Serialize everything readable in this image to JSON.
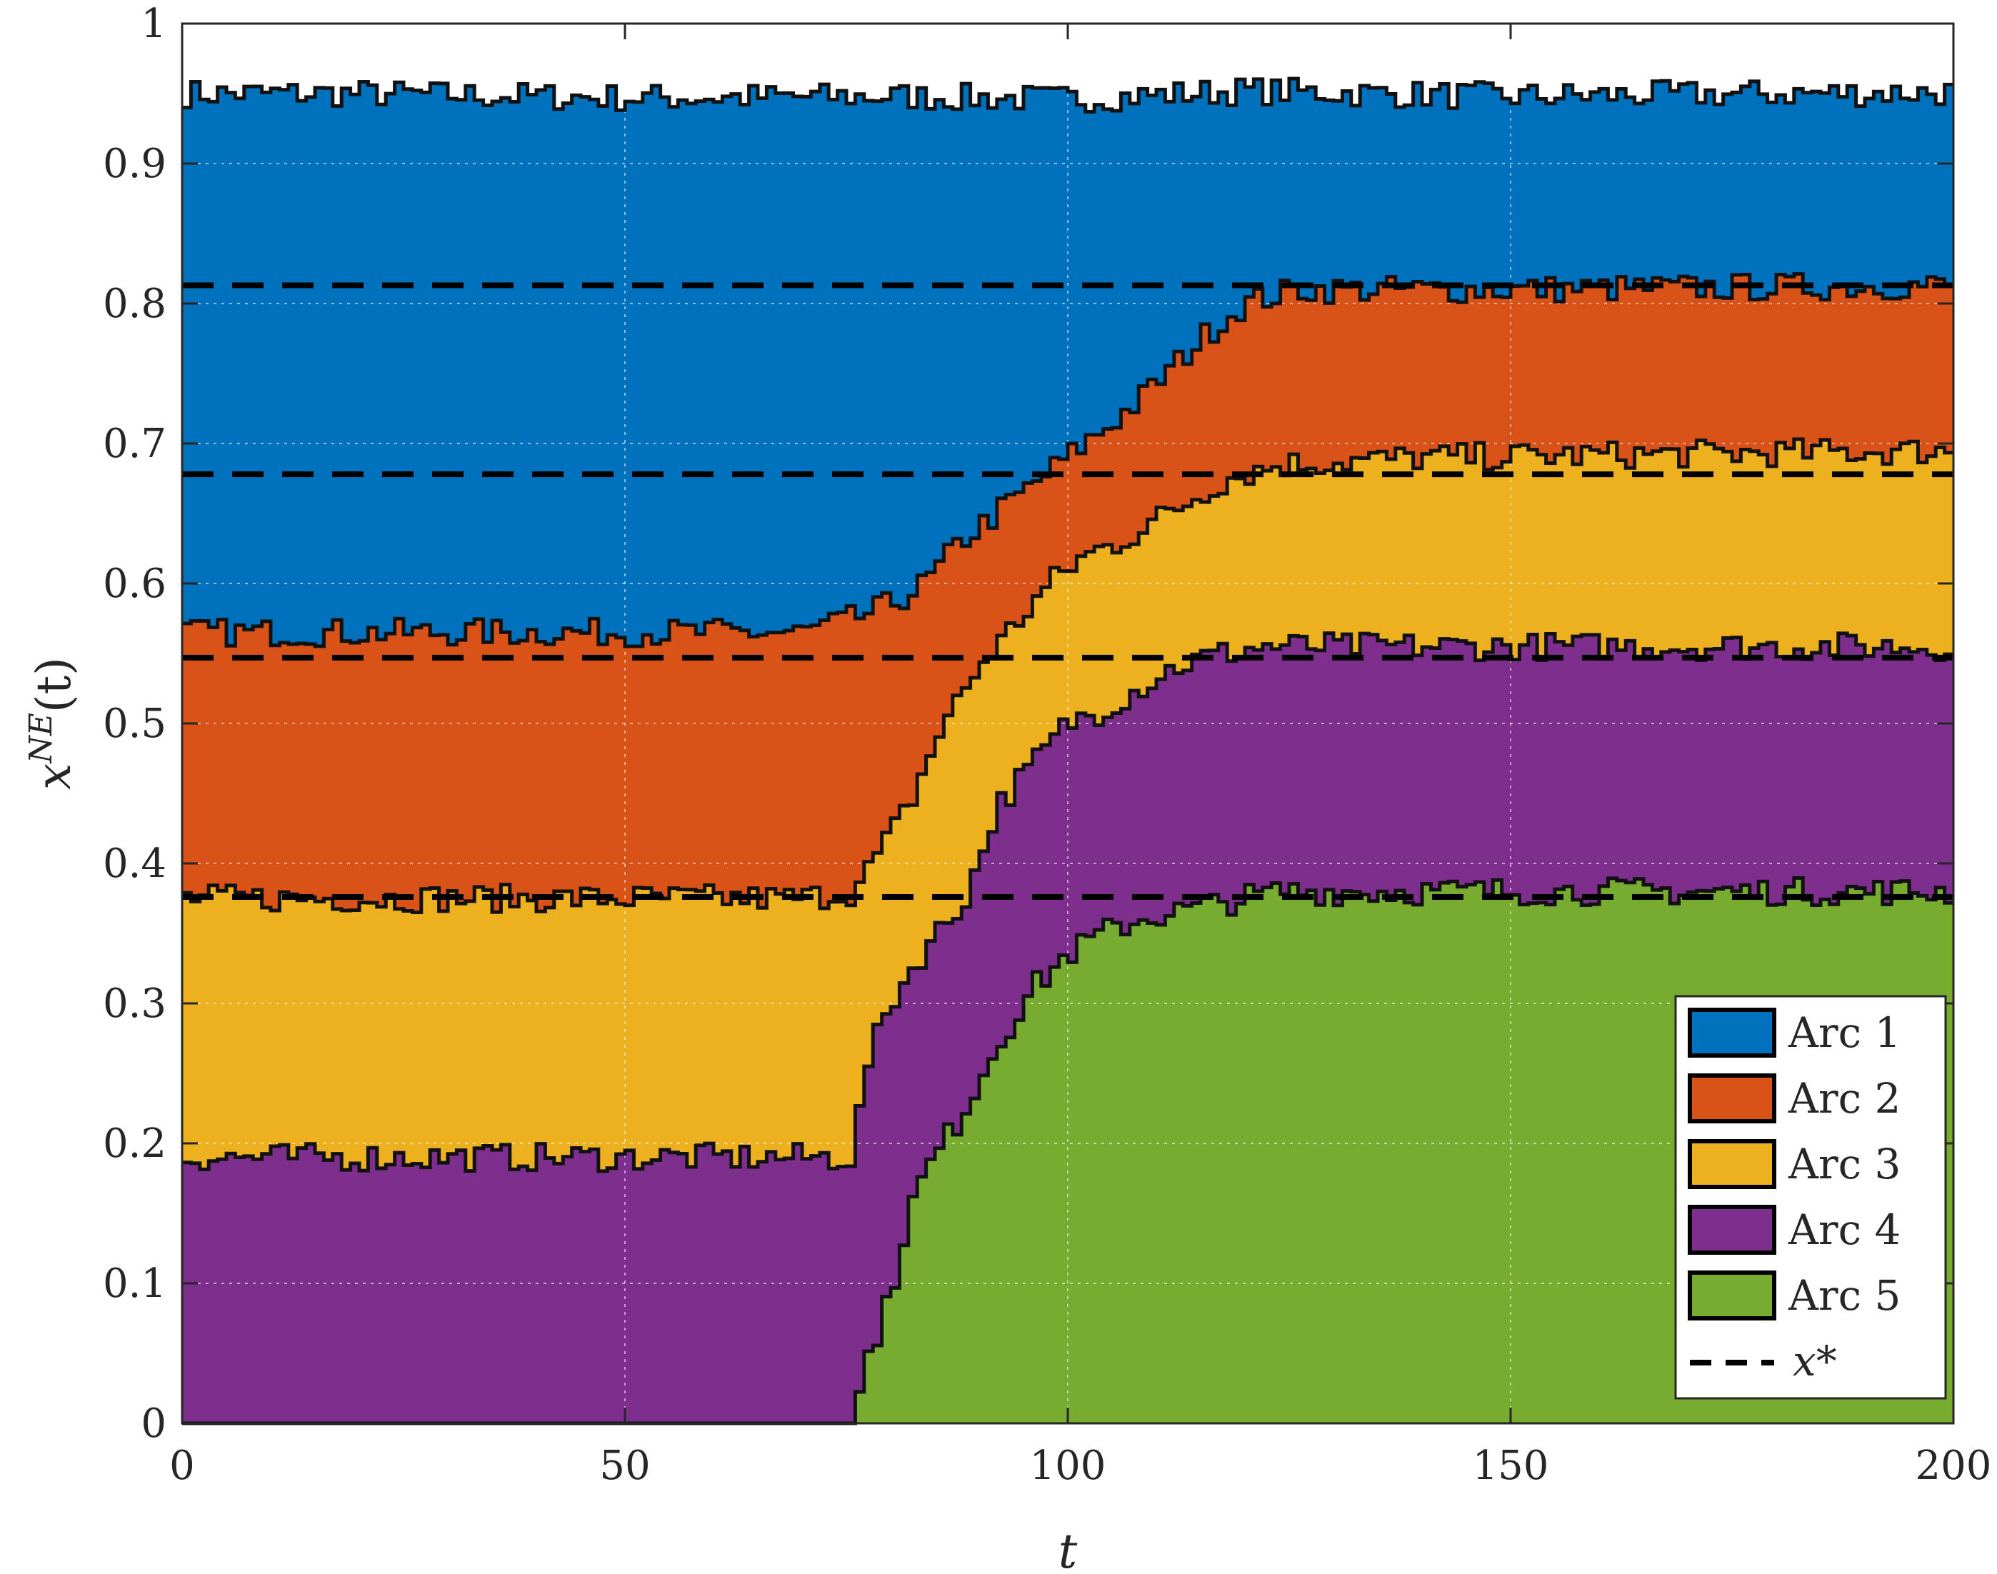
{
  "chart_data": {
    "type": "area",
    "title": "",
    "xlabel": "t",
    "ylabel": "x^{NE}(t)",
    "xlim": [
      0,
      200
    ],
    "ylim": [
      0,
      1
    ],
    "xticks": [
      0,
      50,
      100,
      150,
      200
    ],
    "yticks": [
      0,
      0.1,
      0.2,
      0.3,
      0.4,
      0.5,
      0.6,
      0.7,
      0.8,
      0.9,
      1
    ],
    "ytick_labels": [
      "0",
      "0.1",
      "0.2",
      "0.3",
      "0.4",
      "0.5",
      "0.6",
      "0.7",
      "0.8",
      "0.9",
      "1"
    ],
    "grid": true,
    "stacked": true,
    "step": true,
    "legend_position": "bottom-right",
    "x_star": [
      0.376,
      0.547,
      0.678,
      0.813
    ],
    "x_star_label": "x*",
    "series": [
      {
        "name": "Arc 1",
        "color": "#0072BD",
        "cumulative_top": [
          [
            0,
            0.95
          ],
          [
            20,
            0.95
          ],
          [
            50,
            0.947
          ],
          [
            80,
            0.948
          ],
          [
            100,
            0.946
          ],
          [
            120,
            0.952
          ],
          [
            150,
            0.948
          ],
          [
            180,
            0.95
          ],
          [
            200,
            0.951
          ]
        ]
      },
      {
        "name": "Arc 2",
        "color": "#D95319",
        "cumulative_top": [
          [
            0,
            0.565
          ],
          [
            40,
            0.565
          ],
          [
            70,
            0.565
          ],
          [
            76,
            0.575
          ],
          [
            80,
            0.585
          ],
          [
            84,
            0.6
          ],
          [
            88,
            0.63
          ],
          [
            92,
            0.65
          ],
          [
            96,
            0.67
          ],
          [
            100,
            0.69
          ],
          [
            104,
            0.71
          ],
          [
            108,
            0.73
          ],
          [
            112,
            0.755
          ],
          [
            116,
            0.78
          ],
          [
            120,
            0.8
          ],
          [
            126,
            0.81
          ],
          [
            150,
            0.81
          ],
          [
            200,
            0.813
          ]
        ]
      },
      {
        "name": "Arc 3",
        "color": "#EDB120",
        "cumulative_top": [
          [
            0,
            0.375
          ],
          [
            70,
            0.375
          ],
          [
            76,
            0.38
          ],
          [
            78,
            0.4
          ],
          [
            82,
            0.44
          ],
          [
            86,
            0.5
          ],
          [
            90,
            0.54
          ],
          [
            94,
            0.57
          ],
          [
            98,
            0.6
          ],
          [
            102,
            0.62
          ],
          [
            106,
            0.63
          ],
          [
            110,
            0.645
          ],
          [
            114,
            0.66
          ],
          [
            118,
            0.675
          ],
          [
            124,
            0.685
          ],
          [
            140,
            0.69
          ],
          [
            200,
            0.695
          ]
        ]
      },
      {
        "name": "Arc 4",
        "color": "#7E2F8E",
        "cumulative_top": [
          [
            0,
            0.19
          ],
          [
            76,
            0.19
          ],
          [
            77,
            0.25
          ],
          [
            80,
            0.3
          ],
          [
            84,
            0.34
          ],
          [
            88,
            0.37
          ],
          [
            90,
            0.4
          ],
          [
            92,
            0.44
          ],
          [
            96,
            0.47
          ],
          [
            100,
            0.5
          ],
          [
            104,
            0.51
          ],
          [
            108,
            0.525
          ],
          [
            112,
            0.54
          ],
          [
            116,
            0.548
          ],
          [
            122,
            0.555
          ],
          [
            140,
            0.555
          ],
          [
            200,
            0.555
          ]
        ]
      },
      {
        "name": "Arc 5",
        "color": "#77AC30",
        "cumulative_top": [
          [
            0,
            0
          ],
          [
            76,
            0
          ],
          [
            77,
            0.04
          ],
          [
            80,
            0.09
          ],
          [
            82,
            0.15
          ],
          [
            84,
            0.18
          ],
          [
            88,
            0.22
          ],
          [
            92,
            0.27
          ],
          [
            96,
            0.31
          ],
          [
            100,
            0.335
          ],
          [
            104,
            0.35
          ],
          [
            108,
            0.36
          ],
          [
            112,
            0.365
          ],
          [
            116,
            0.37
          ],
          [
            124,
            0.38
          ],
          [
            150,
            0.38
          ],
          [
            200,
            0.38
          ]
        ]
      }
    ]
  }
}
